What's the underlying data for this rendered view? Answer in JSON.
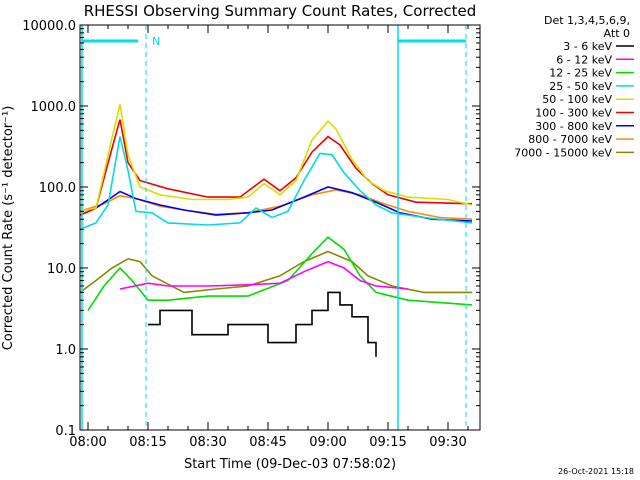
{
  "chart_data": {
    "type": "line",
    "title": "RHESSI Observing Summary Count Rates, Corrected",
    "xlabel": "Start Time (09-Dec-03 07:58:02)",
    "ylabel": "Corrected Count Rate (s⁻¹ detector⁻¹)",
    "yscale": "log",
    "ylim": [
      0.1,
      10000
    ],
    "xlim_minutes_after_start": [
      -2,
      98
    ],
    "y_ticks": [
      "0.1",
      "1.0",
      "10.0",
      "100.0",
      "1000.0",
      "10000.0"
    ],
    "x_ticks": [
      {
        "label": "08:00",
        "t": 0
      },
      {
        "label": "08:15",
        "t": 15
      },
      {
        "label": "08:30",
        "t": 30
      },
      {
        "label": "08:45",
        "t": 45
      },
      {
        "label": "09:00",
        "t": 60
      },
      {
        "label": "09:15",
        "t": 75
      },
      {
        "label": "09:30",
        "t": 90
      }
    ],
    "legend_header": [
      "Det 1,3,4,5,6,9,",
      "Att 0"
    ],
    "legend_position": "right",
    "night_marker_label": "N",
    "night_intervals": [
      [
        -1.5,
        12.5
      ],
      [
        77.5,
        94.5
      ]
    ],
    "dashed_markers": [
      -1.5,
      14.5,
      77.5,
      94.5
    ],
    "series": [
      {
        "name": "3 - 6 keV",
        "color": "#000000",
        "style": "step",
        "points": [
          [
            12,
            0
          ],
          [
            15,
            2
          ],
          [
            18,
            3
          ],
          [
            26,
            1.5
          ],
          [
            35,
            2
          ],
          [
            45,
            1.2
          ],
          [
            52,
            2
          ],
          [
            56,
            3
          ],
          [
            60,
            5
          ],
          [
            63,
            3.5
          ],
          [
            66,
            2.5
          ],
          [
            70,
            1.2
          ],
          [
            72,
            0.8
          ]
        ]
      },
      {
        "name": "6 - 12 keV",
        "color": "#ff00ff",
        "points": [
          [
            8,
            5.5
          ],
          [
            15,
            6.5
          ],
          [
            20,
            6
          ],
          [
            30,
            6
          ],
          [
            40,
            6.2
          ],
          [
            48,
            6.5
          ],
          [
            54,
            9
          ],
          [
            60,
            12
          ],
          [
            64,
            10
          ],
          [
            68,
            7
          ],
          [
            72,
            6
          ],
          [
            80,
            5.5
          ]
        ]
      },
      {
        "name": "12 - 25 keV",
        "color": "#00dd00",
        "points": [
          [
            0,
            3
          ],
          [
            4,
            6
          ],
          [
            8,
            10
          ],
          [
            11,
            7
          ],
          [
            15,
            4
          ],
          [
            20,
            4
          ],
          [
            30,
            4.5
          ],
          [
            40,
            4.5
          ],
          [
            50,
            7
          ],
          [
            56,
            15
          ],
          [
            60,
            24
          ],
          [
            64,
            17
          ],
          [
            68,
            8
          ],
          [
            72,
            5
          ],
          [
            80,
            4
          ],
          [
            96,
            3.5
          ]
        ]
      },
      {
        "name": "25 - 50 keV",
        "color": "#00dddd",
        "points": [
          [
            -2,
            30
          ],
          [
            2,
            36
          ],
          [
            5,
            60
          ],
          [
            8,
            420
          ],
          [
            10,
            160
          ],
          [
            12,
            50
          ],
          [
            16,
            48
          ],
          [
            20,
            36
          ],
          [
            30,
            34
          ],
          [
            38,
            36
          ],
          [
            42,
            55
          ],
          [
            46,
            42
          ],
          [
            50,
            50
          ],
          [
            54,
            120
          ],
          [
            58,
            260
          ],
          [
            61,
            250
          ],
          [
            64,
            150
          ],
          [
            68,
            90
          ],
          [
            72,
            60
          ],
          [
            76,
            48
          ],
          [
            84,
            42
          ],
          [
            96,
            36
          ]
        ]
      },
      {
        "name": "50 - 100 keV",
        "color": "#dddd00",
        "points": [
          [
            -2,
            50
          ],
          [
            2,
            55
          ],
          [
            6,
            400
          ],
          [
            8,
            1050
          ],
          [
            10,
            250
          ],
          [
            13,
            100
          ],
          [
            18,
            80
          ],
          [
            26,
            70
          ],
          [
            35,
            70
          ],
          [
            40,
            75
          ],
          [
            44,
            110
          ],
          [
            48,
            80
          ],
          [
            52,
            120
          ],
          [
            56,
            380
          ],
          [
            60,
            650
          ],
          [
            62,
            520
          ],
          [
            66,
            220
          ],
          [
            70,
            120
          ],
          [
            74,
            90
          ],
          [
            80,
            75
          ],
          [
            90,
            70
          ],
          [
            96,
            60
          ]
        ]
      },
      {
        "name": "100 - 300 keV",
        "color": "#ee0000",
        "points": [
          [
            -2,
            45
          ],
          [
            2,
            55
          ],
          [
            6,
            300
          ],
          [
            8,
            680
          ],
          [
            10,
            200
          ],
          [
            13,
            120
          ],
          [
            20,
            95
          ],
          [
            30,
            75
          ],
          [
            38,
            75
          ],
          [
            44,
            125
          ],
          [
            48,
            90
          ],
          [
            52,
            130
          ],
          [
            56,
            270
          ],
          [
            60,
            420
          ],
          [
            63,
            330
          ],
          [
            67,
            170
          ],
          [
            71,
            110
          ],
          [
            75,
            80
          ],
          [
            82,
            65
          ],
          [
            96,
            62
          ]
        ]
      },
      {
        "name": "300 - 800 keV",
        "color": "#0000ee",
        "points": [
          [
            -2,
            45
          ],
          [
            2,
            55
          ],
          [
            6,
            75
          ],
          [
            8,
            88
          ],
          [
            12,
            72
          ],
          [
            18,
            60
          ],
          [
            24,
            52
          ],
          [
            32,
            45
          ],
          [
            40,
            48
          ],
          [
            46,
            52
          ],
          [
            54,
            75
          ],
          [
            60,
            100
          ],
          [
            66,
            85
          ],
          [
            72,
            65
          ],
          [
            78,
            48
          ],
          [
            86,
            40
          ],
          [
            96,
            38
          ]
        ]
      },
      {
        "name": "800 - 7000 keV",
        "color": "#ff8800",
        "points": [
          [
            -2,
            50
          ],
          [
            4,
            62
          ],
          [
            8,
            78
          ],
          [
            12,
            72
          ],
          [
            18,
            58
          ],
          [
            24,
            52
          ],
          [
            32,
            46
          ],
          [
            40,
            48
          ],
          [
            48,
            58
          ],
          [
            56,
            80
          ],
          [
            62,
            92
          ],
          [
            68,
            80
          ],
          [
            74,
            62
          ],
          [
            80,
            50
          ],
          [
            88,
            42
          ],
          [
            96,
            40
          ]
        ]
      },
      {
        "name": "7000 - 15000 keV",
        "color": "#888800",
        "points": [
          [
            -2,
            5
          ],
          [
            2,
            7
          ],
          [
            6,
            10
          ],
          [
            10,
            13
          ],
          [
            13,
            12
          ],
          [
            16,
            8
          ],
          [
            24,
            5
          ],
          [
            32,
            5.5
          ],
          [
            40,
            6
          ],
          [
            48,
            8
          ],
          [
            54,
            12
          ],
          [
            60,
            16
          ],
          [
            66,
            12
          ],
          [
            70,
            8
          ],
          [
            76,
            6
          ],
          [
            84,
            5
          ],
          [
            96,
            5
          ]
        ]
      }
    ]
  },
  "timestamp": "26-Oct-2021 15:18"
}
